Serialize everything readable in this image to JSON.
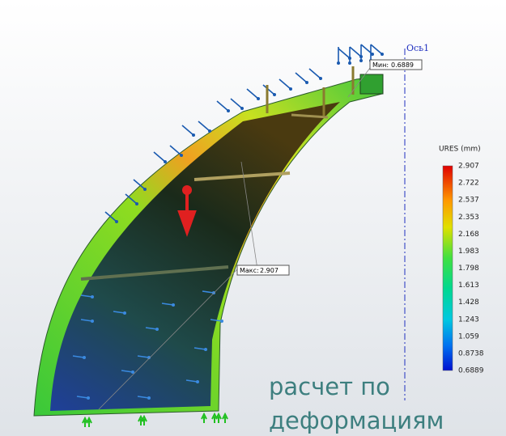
{
  "axis_label": "Ось1",
  "min_probe": {
    "label": "Мин:",
    "value": 0.6889
  },
  "max_probe": {
    "label": "Макс:",
    "value": 2.907
  },
  "legend": {
    "title": "URES (mm)",
    "ticks": [
      2.907,
      2.722,
      2.537,
      2.353,
      2.168,
      1.983,
      1.798,
      1.613,
      1.428,
      1.243,
      1.059,
      0.8738,
      0.6889
    ]
  },
  "caption": {
    "line1": "расчет по",
    "line2": "деформациям"
  }
}
